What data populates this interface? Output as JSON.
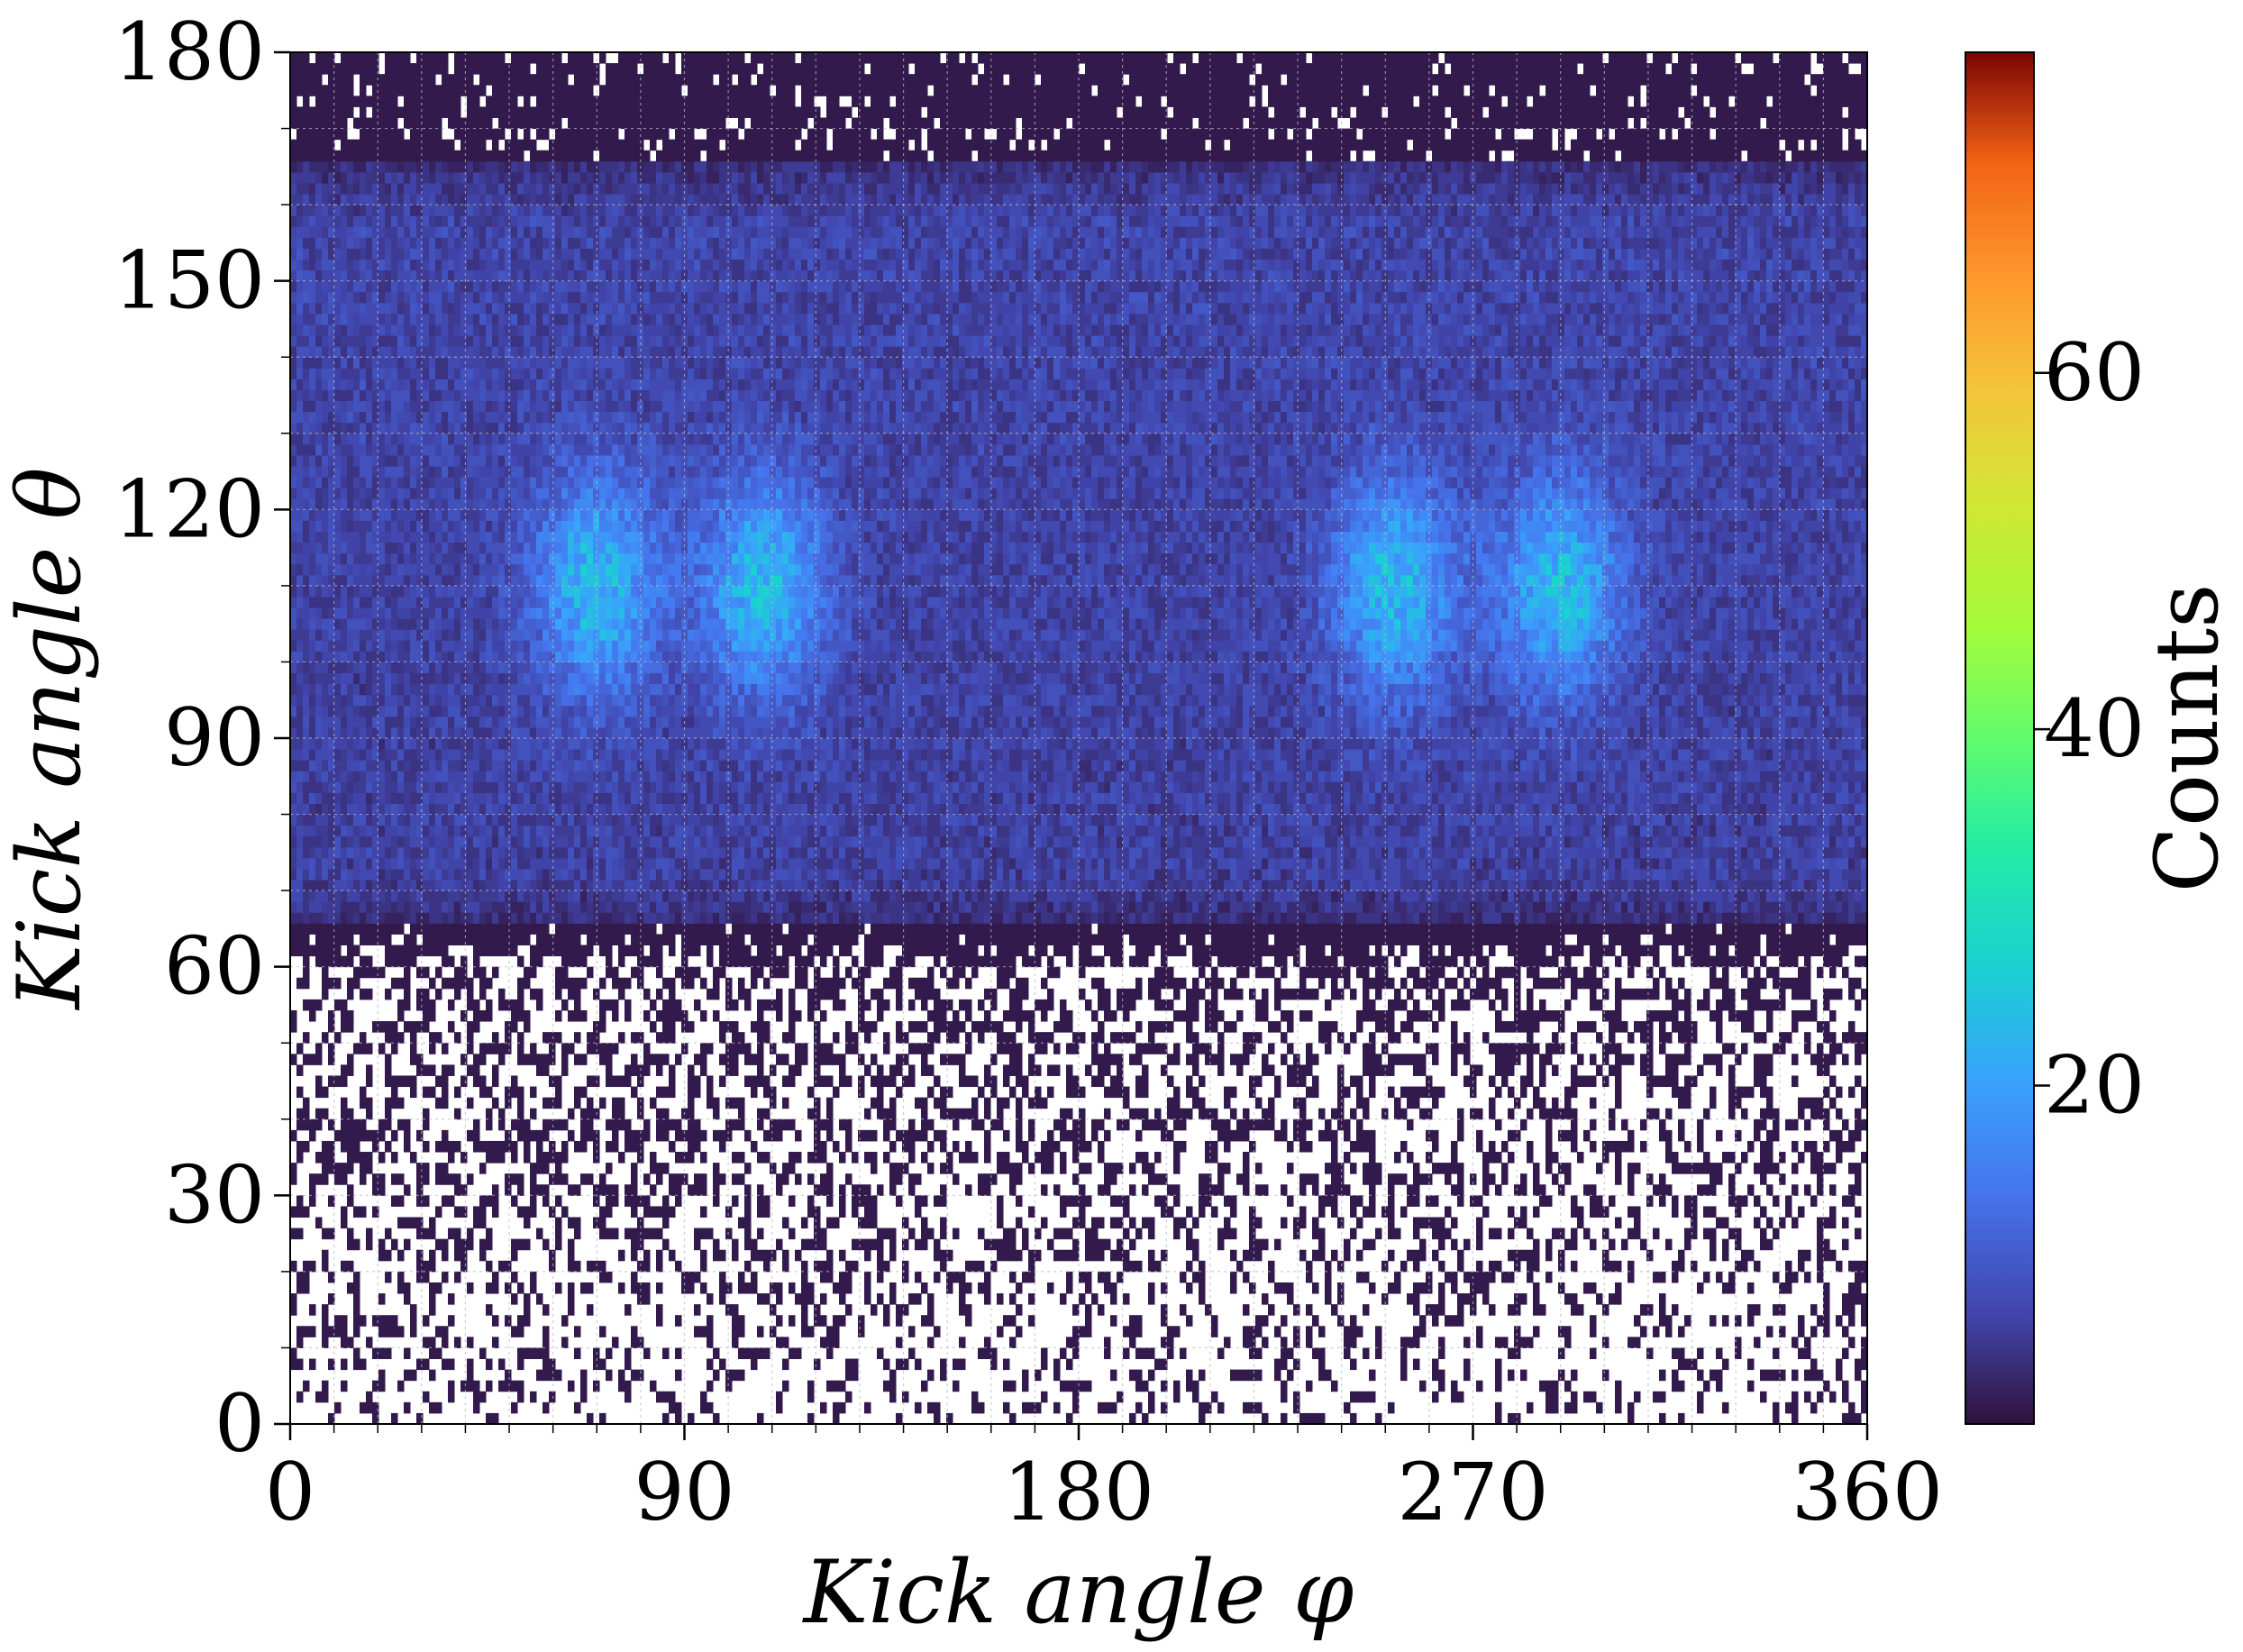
{
  "chart_data": {
    "type": "heatmap",
    "title": "",
    "xlabel": "Kick angle φ",
    "ylabel": "Kick angle θ",
    "xlim": [
      0,
      360
    ],
    "ylim": [
      0,
      180
    ],
    "x_ticks": [
      0,
      90,
      180,
      270,
      360
    ],
    "y_ticks": [
      0,
      30,
      60,
      90,
      120,
      150,
      180
    ],
    "x_tick_labels": [
      "0",
      "90",
      "180",
      "270",
      "360"
    ],
    "y_tick_labels": [
      "0",
      "30",
      "60",
      "90",
      "120",
      "150",
      "180"
    ],
    "grid": true,
    "colorbar": {
      "label": "Counts",
      "range": [
        1,
        78
      ],
      "ticks": [
        20,
        40,
        60
      ],
      "tick_labels": [
        "20",
        "40",
        "60"
      ],
      "colormap": "turbo"
    },
    "density_features": [
      {
        "description": "background band",
        "theta_range": [
          60,
          170
        ],
        "counts_approx": 5
      },
      {
        "phi_center": 70,
        "theta_center": 110,
        "counts_peak": 22
      },
      {
        "phi_center": 108,
        "theta_center": 110,
        "counts_peak": 22
      },
      {
        "phi_center": 252,
        "theta_center": 110,
        "counts_peak": 22
      },
      {
        "phi_center": 290,
        "theta_center": 110,
        "counts_peak": 22
      }
    ]
  }
}
